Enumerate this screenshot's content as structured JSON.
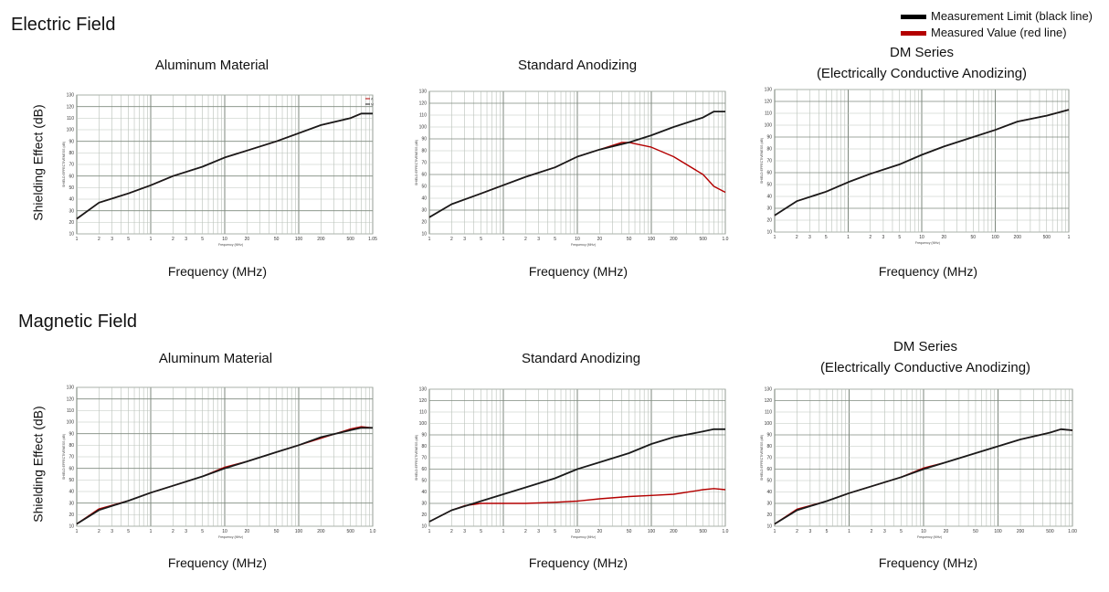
{
  "sections": [
    {
      "title": "Electric Field"
    },
    {
      "title": "Magnetic Field"
    }
  ],
  "legend": {
    "items": [
      {
        "label": "Measurement Limit (black line)",
        "color": "#000000"
      },
      {
        "label": "Measured Value (red line)",
        "color": "#b40000"
      }
    ]
  },
  "y_axis_label": "Shielding Effect (dB)",
  "x_axis_label": "Frequency (MHz)",
  "inner_xlabel": "Frequency (MHz)",
  "inner_ylabel": "SHIELD EFFECTIVENESS (dB)",
  "colors": {
    "limit": "#1a1a1a",
    "measured": "#b40000",
    "grid": "#9aa59a"
  },
  "chart_data": [
    {
      "type": "line",
      "title": "Aluminum Material",
      "xscale": "log",
      "xlim": [
        0.1,
        1000
      ],
      "ylim": [
        10,
        130
      ],
      "xticks": [
        "1",
        "2",
        "3",
        "5",
        "1",
        "2",
        "3",
        "5",
        "10",
        "20",
        "50",
        "100",
        "200",
        "500",
        "1.05"
      ],
      "yticks": [
        10,
        20,
        30,
        40,
        50,
        60,
        70,
        80,
        90,
        100,
        110,
        120,
        130
      ],
      "legend_marks": [
        "A",
        "M"
      ],
      "series": [
        {
          "name": "Measurement Limit",
          "color": "#1a1a1a",
          "x": [
            0.1,
            0.2,
            0.5,
            1,
            2,
            5,
            10,
            20,
            50,
            100,
            200,
            500,
            700,
            1000
          ],
          "y": [
            23,
            37,
            45,
            52,
            60,
            68,
            76,
            82,
            90,
            97,
            104,
            110,
            114,
            114
          ]
        },
        {
          "name": "Measured Value",
          "color": "#b40000",
          "x": [
            0.1,
            0.2,
            0.5,
            1,
            2,
            5,
            10,
            20,
            50,
            100,
            200,
            500,
            700,
            1000
          ],
          "y": [
            23,
            37,
            45,
            52,
            60,
            68,
            76,
            82,
            90,
            97,
            104,
            110,
            114,
            114
          ]
        }
      ]
    },
    {
      "type": "line",
      "title": "Standard Anodizing",
      "xscale": "log",
      "xlim": [
        0.1,
        1000
      ],
      "ylim": [
        10,
        130
      ],
      "xticks": [
        "1",
        "2",
        "3",
        "5",
        "1",
        "2",
        "3",
        "5",
        "10",
        "20",
        "50",
        "100",
        "200",
        "500",
        "1.0"
      ],
      "yticks": [
        10,
        20,
        30,
        40,
        50,
        60,
        70,
        80,
        90,
        100,
        110,
        120,
        130
      ],
      "series": [
        {
          "name": "Measurement Limit",
          "color": "#1a1a1a",
          "x": [
            0.1,
            0.2,
            0.5,
            1,
            2,
            5,
            10,
            20,
            50,
            100,
            200,
            500,
            700,
            1000
          ],
          "y": [
            24,
            35,
            44,
            51,
            58,
            66,
            75,
            81,
            87,
            93,
            100,
            108,
            113,
            113
          ]
        },
        {
          "name": "Measured Value",
          "color": "#b40000",
          "x": [
            0.1,
            0.2,
            0.5,
            1,
            2,
            5,
            10,
            20,
            40,
            50,
            100,
            200,
            500,
            700,
            1000
          ],
          "y": [
            24,
            35,
            44,
            51,
            58,
            66,
            75,
            81,
            87,
            87,
            83,
            75,
            60,
            50,
            45
          ]
        }
      ]
    },
    {
      "type": "line",
      "title": "DM Series\n(Electrically Conductive Anodizing)",
      "xscale": "log",
      "xlim": [
        0.1,
        1000
      ],
      "ylim": [
        10,
        130
      ],
      "xticks": [
        "1",
        "2",
        "3",
        "5",
        "1",
        "2",
        "3",
        "5",
        "10",
        "20",
        "50",
        "100",
        "200",
        "500",
        "1"
      ],
      "yticks": [
        10,
        20,
        30,
        40,
        50,
        60,
        70,
        80,
        90,
        100,
        110,
        120,
        130
      ],
      "series": [
        {
          "name": "Measurement Limit",
          "color": "#1a1a1a",
          "x": [
            0.1,
            0.2,
            0.5,
            1,
            2,
            5,
            10,
            20,
            50,
            100,
            200,
            500,
            1000
          ],
          "y": [
            24,
            36,
            44,
            52,
            59,
            67,
            75,
            82,
            90,
            96,
            103,
            108,
            113
          ]
        },
        {
          "name": "Measured Value",
          "color": "#b40000",
          "x": [
            0.1,
            0.2,
            0.5,
            1,
            2,
            5,
            10,
            20,
            50,
            100,
            200,
            500,
            1000
          ],
          "y": [
            24,
            36,
            44,
            52,
            59,
            67,
            75,
            82,
            90,
            96,
            103,
            108,
            113
          ]
        }
      ]
    },
    {
      "type": "line",
      "title": "Aluminum Material",
      "xscale": "log",
      "xlim": [
        0.1,
        1000
      ],
      "ylim": [
        10,
        130
      ],
      "xticks": [
        "1",
        "2",
        "3",
        "5",
        "1",
        "2",
        "3",
        "5",
        "10",
        "20",
        "50",
        "100",
        "200",
        "500",
        "1.0"
      ],
      "yticks": [
        10,
        20,
        30,
        40,
        50,
        60,
        70,
        80,
        90,
        100,
        110,
        120,
        130
      ],
      "series": [
        {
          "name": "Measurement Limit",
          "color": "#1a1a1a",
          "x": [
            0.1,
            0.2,
            0.5,
            1,
            2,
            5,
            10,
            20,
            50,
            100,
            200,
            500,
            700,
            1000
          ],
          "y": [
            12,
            24,
            32,
            39,
            45,
            53,
            60,
            66,
            74,
            80,
            87,
            93,
            95,
            95
          ]
        },
        {
          "name": "Measured Value",
          "color": "#b40000",
          "x": [
            0.1,
            0.2,
            0.5,
            1,
            2,
            5,
            10,
            20,
            50,
            100,
            200,
            500,
            700,
            1000
          ],
          "y": [
            12,
            25,
            32,
            39,
            45,
            53,
            61,
            66,
            74,
            80,
            86,
            94,
            96,
            95
          ]
        }
      ]
    },
    {
      "type": "line",
      "title": "Standard Anodizing",
      "xscale": "log",
      "xlim": [
        0.1,
        1000
      ],
      "ylim": [
        10,
        130
      ],
      "xticks": [
        "1",
        "2",
        "3",
        "5",
        "1",
        "2",
        "3",
        "5",
        "10",
        "20",
        "50",
        "100",
        "200",
        "500",
        "1.0"
      ],
      "yticks": [
        10,
        20,
        30,
        40,
        50,
        60,
        70,
        80,
        90,
        100,
        110,
        120,
        130
      ],
      "series": [
        {
          "name": "Measurement Limit",
          "color": "#1a1a1a",
          "x": [
            0.1,
            0.2,
            0.5,
            1,
            2,
            5,
            10,
            20,
            50,
            100,
            200,
            500,
            700,
            1000
          ],
          "y": [
            14,
            24,
            32,
            38,
            44,
            52,
            60,
            66,
            74,
            82,
            88,
            93,
            95,
            95
          ]
        },
        {
          "name": "Measured Value",
          "color": "#b40000",
          "x": [
            0.1,
            0.2,
            0.3,
            0.5,
            1,
            2,
            5,
            10,
            20,
            50,
            100,
            200,
            500,
            700,
            1000
          ],
          "y": [
            14,
            24,
            28,
            30,
            30,
            30,
            31,
            32,
            34,
            36,
            37,
            38,
            42,
            43,
            42
          ]
        }
      ]
    },
    {
      "type": "line",
      "title": "DM Series\n(Electrically Conductive Anodizing)",
      "xscale": "log",
      "xlim": [
        0.1,
        1000
      ],
      "ylim": [
        10,
        130
      ],
      "xticks": [
        "1",
        "2",
        "3",
        "5",
        "1",
        "2",
        "3",
        "5",
        "10",
        "20",
        "50",
        "100",
        "200",
        "500",
        "1.00"
      ],
      "yticks": [
        10,
        20,
        30,
        40,
        50,
        60,
        70,
        80,
        90,
        100,
        110,
        120,
        130
      ],
      "series": [
        {
          "name": "Measurement Limit",
          "color": "#1a1a1a",
          "x": [
            0.1,
            0.2,
            0.5,
            1,
            2,
            5,
            10,
            20,
            50,
            100,
            200,
            500,
            700,
            1000
          ],
          "y": [
            12,
            24,
            32,
            39,
            45,
            53,
            60,
            66,
            74,
            80,
            86,
            92,
            95,
            94
          ]
        },
        {
          "name": "Measured Value",
          "color": "#b40000",
          "x": [
            0.1,
            0.2,
            0.5,
            1,
            2,
            5,
            10,
            20,
            50,
            100,
            200,
            500,
            700,
            1000
          ],
          "y": [
            12,
            25,
            32,
            39,
            45,
            53,
            61,
            66,
            74,
            80,
            86,
            92,
            95,
            94
          ]
        }
      ]
    }
  ]
}
